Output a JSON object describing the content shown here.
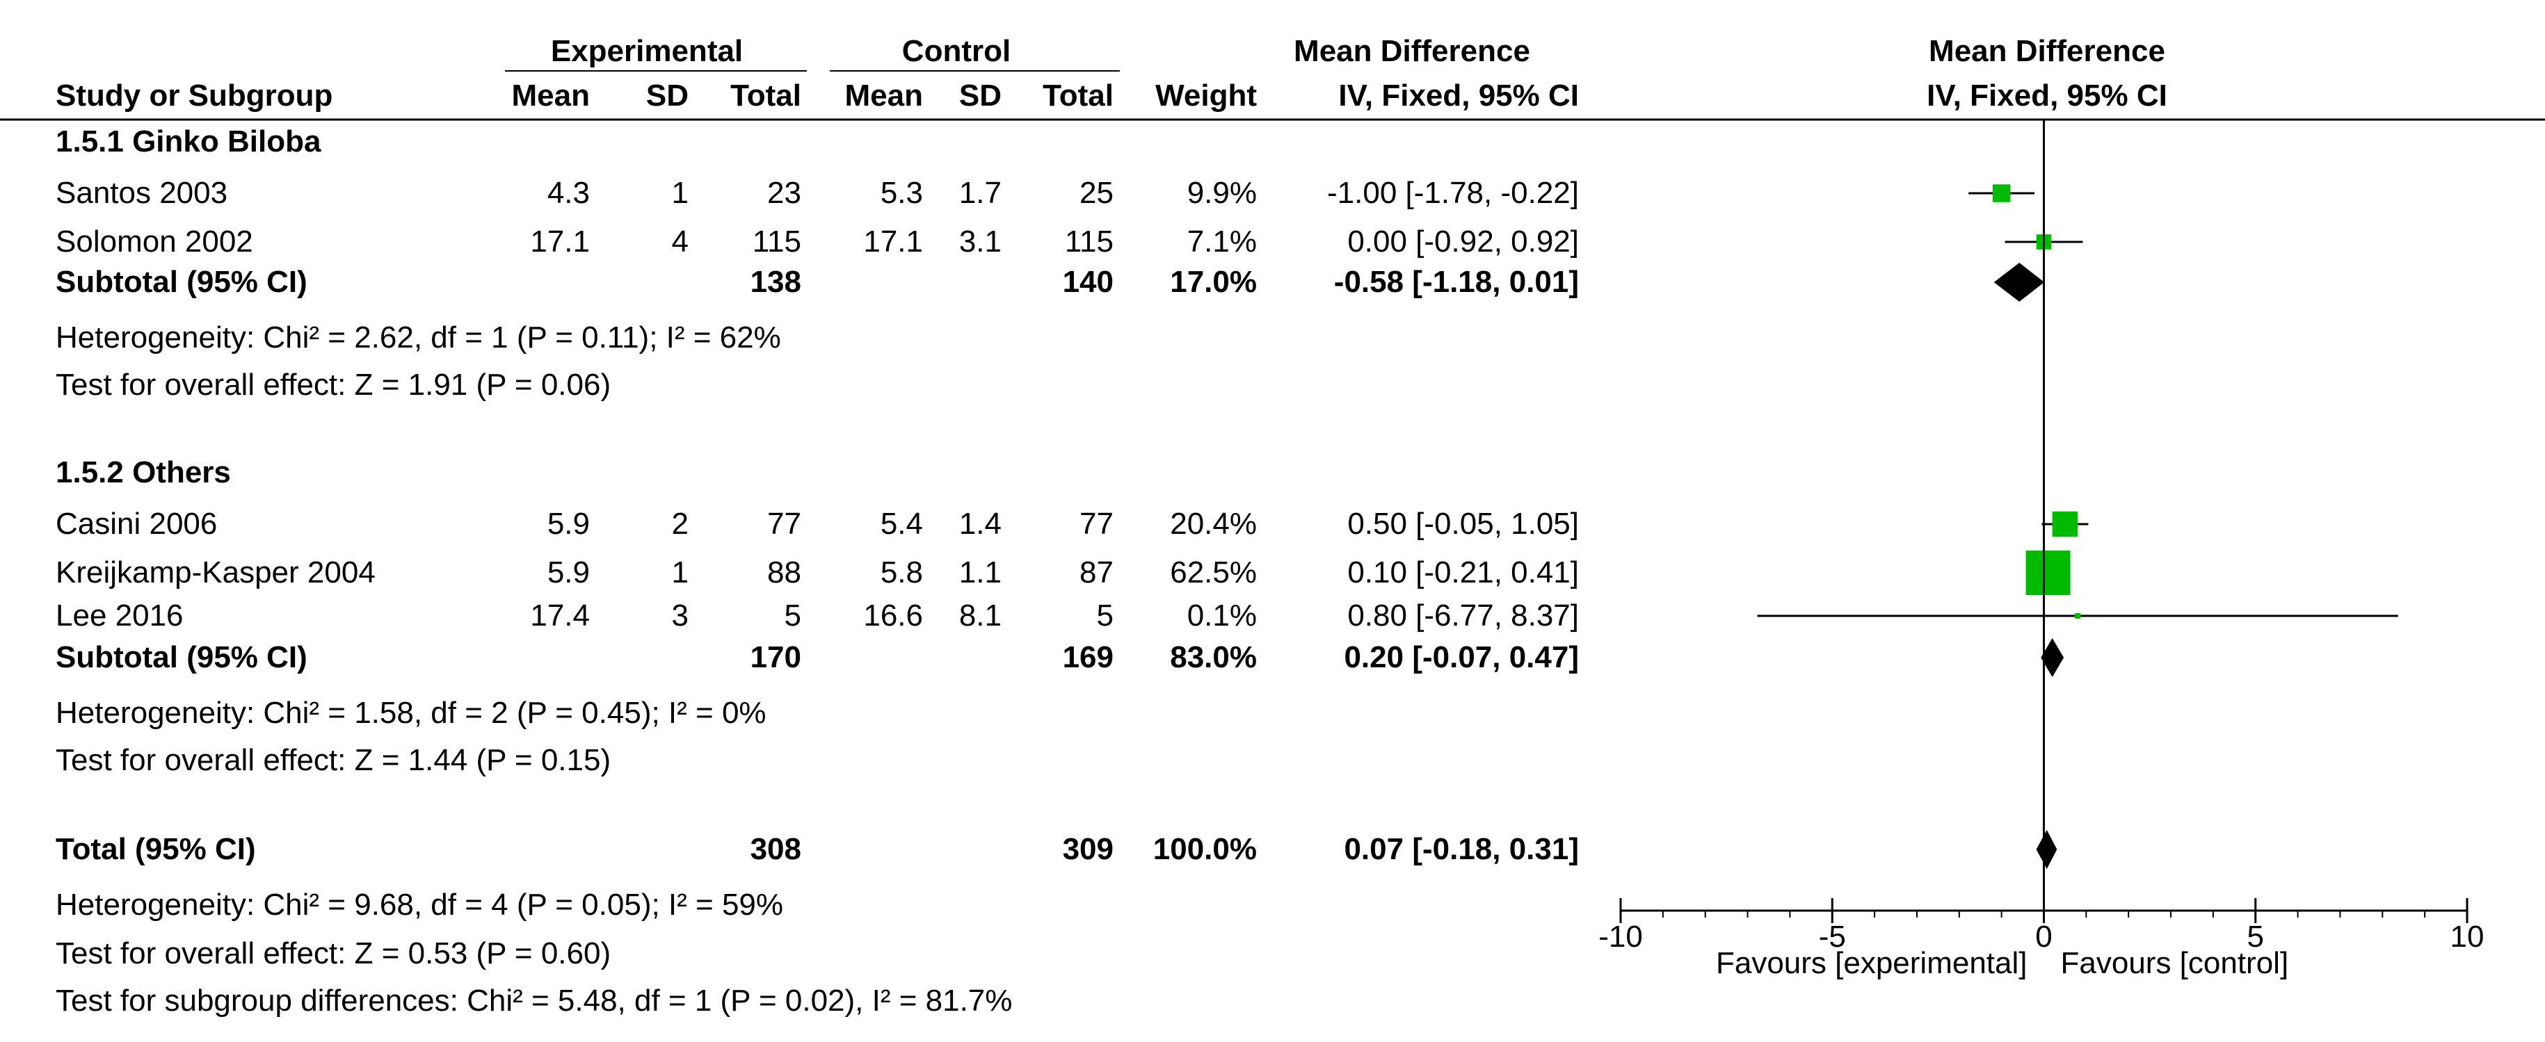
{
  "chart_data": {
    "type": "forest",
    "headers": {
      "experimental": "Experimental",
      "control": "Control",
      "mean_difference": "Mean Difference",
      "mean_difference_plot": "Mean Difference",
      "study": "Study or Subgroup",
      "exp_mean": "Mean",
      "exp_sd": "SD",
      "exp_total": "Total",
      "ctl_mean": "Mean",
      "ctl_sd": "SD",
      "ctl_total": "Total",
      "weight": "Weight",
      "method": "IV, Fixed, 95% CI",
      "method_plot": "IV, Fixed, 95% CI"
    },
    "subgroups": [
      {
        "label": "1.5.1 Ginko Biloba",
        "studies": [
          {
            "name": "Santos 2003",
            "exp_mean": "4.3",
            "exp_sd": "1",
            "exp_total": "23",
            "ctl_mean": "5.3",
            "ctl_sd": "1.7",
            "ctl_total": "25",
            "weight": "9.9%",
            "ci_text": "-1.00 [-1.78, -0.22]",
            "md": -1.0,
            "lo": -1.78,
            "hi": -0.22,
            "w": 9.9
          },
          {
            "name": "Solomon 2002",
            "exp_mean": "17.1",
            "exp_sd": "4",
            "exp_total": "115",
            "ctl_mean": "17.1",
            "ctl_sd": "3.1",
            "ctl_total": "115",
            "weight": "7.1%",
            "ci_text": "0.00 [-0.92, 0.92]",
            "md": 0.0,
            "lo": -0.92,
            "hi": 0.92,
            "w": 7.1
          }
        ],
        "subtotal": {
          "label": "Subtotal (95% CI)",
          "exp_total": "138",
          "ctl_total": "140",
          "weight": "17.0%",
          "ci_text": "-0.58 [-1.18, 0.01]",
          "md": -0.58,
          "lo": -1.18,
          "hi": 0.01
        },
        "heterogeneity": "Heterogeneity: Chi² = 2.62, df = 1 (P = 0.11); I² = 62%",
        "overall_effect": "Test for overall effect: Z = 1.91 (P = 0.06)"
      },
      {
        "label": "1.5.2 Others",
        "studies": [
          {
            "name": "Casini 2006",
            "exp_mean": "5.9",
            "exp_sd": "2",
            "exp_total": "77",
            "ctl_mean": "5.4",
            "ctl_sd": "1.4",
            "ctl_total": "77",
            "weight": "20.4%",
            "ci_text": "0.50 [-0.05, 1.05]",
            "md": 0.5,
            "lo": -0.05,
            "hi": 1.05,
            "w": 20.4
          },
          {
            "name": "Kreijkamp-Kasper 2004",
            "exp_mean": "5.9",
            "exp_sd": "1",
            "exp_total": "88",
            "ctl_mean": "5.8",
            "ctl_sd": "1.1",
            "ctl_total": "87",
            "weight": "62.5%",
            "ci_text": "0.10 [-0.21, 0.41]",
            "md": 0.1,
            "lo": -0.21,
            "hi": 0.41,
            "w": 62.5
          },
          {
            "name": "Lee 2016",
            "exp_mean": "17.4",
            "exp_sd": "3",
            "exp_total": "5",
            "ctl_mean": "16.6",
            "ctl_sd": "8.1",
            "ctl_total": "5",
            "weight": "0.1%",
            "ci_text": "0.80 [-6.77, 8.37]",
            "md": 0.8,
            "lo": -6.77,
            "hi": 8.37,
            "w": 0.1
          }
        ],
        "subtotal": {
          "label": "Subtotal (95% CI)",
          "exp_total": "170",
          "ctl_total": "169",
          "weight": "83.0%",
          "ci_text": "0.20 [-0.07, 0.47]",
          "md": 0.2,
          "lo": -0.07,
          "hi": 0.47
        },
        "heterogeneity": "Heterogeneity: Chi² = 1.58, df = 2 (P = 0.45); I² = 0%",
        "overall_effect": "Test for overall effect: Z = 1.44 (P = 0.15)"
      }
    ],
    "total": {
      "label": "Total (95% CI)",
      "exp_total": "308",
      "ctl_total": "309",
      "weight": "100.0%",
      "ci_text": "0.07 [-0.18, 0.31]",
      "md": 0.07,
      "lo": -0.18,
      "hi": 0.31
    },
    "total_heterogeneity": "Heterogeneity: Chi² = 9.68, df = 4 (P = 0.05); I² = 59%",
    "total_overall_effect": "Test for overall effect: Z = 0.53 (P = 0.60)",
    "subgroup_differences": "Test for subgroup differences: Chi² = 5.48, df = 1 (P = 0.02), I² = 81.7%",
    "axis": {
      "min": -10,
      "max": 10,
      "ticks": [
        -10,
        -5,
        0,
        5,
        10
      ],
      "favours_left": "Favours [experimental]",
      "favours_right": "Favours [control]"
    },
    "colors": {
      "study_marker": "#00bb00",
      "pooled_diamond": "#000000",
      "lines": "#000000"
    }
  }
}
